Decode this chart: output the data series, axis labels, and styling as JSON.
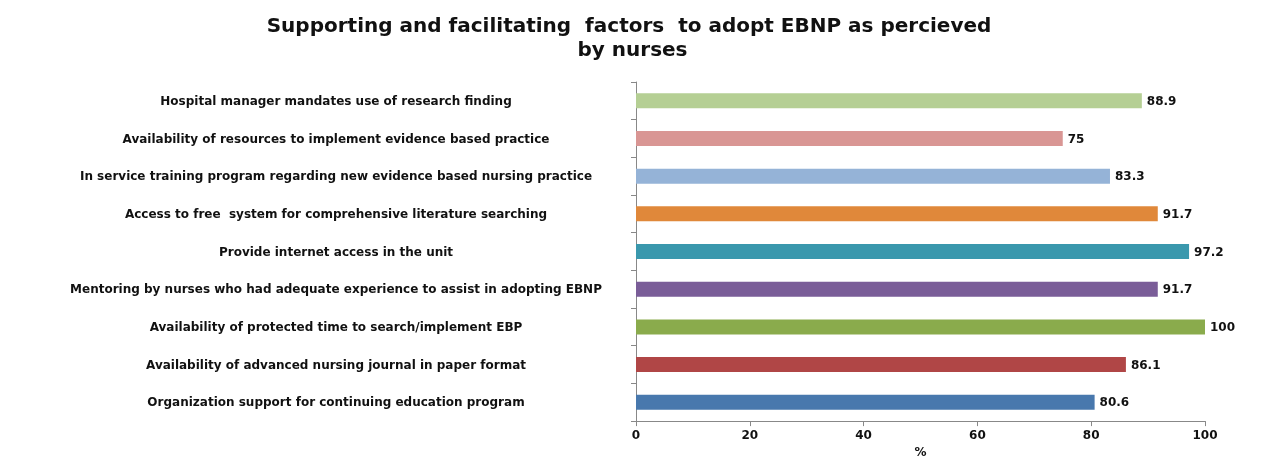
{
  "chart_data": {
    "type": "bar",
    "orientation": "horizontal",
    "title": "Supporting and facilitating  factors  to adopt EBNP as percieved by nurses",
    "xlabel": "%",
    "categories": [
      "Hospital manager mandates use of research finding",
      "Availability of resources to implement evidence based practice",
      "In service training program regarding new evidence based nursing practice",
      "Access to free  system for comprehensive literature searching",
      "Provide internet access in the unit",
      "Mentoring by nurses who had adequate experience to assist in adopting EBNP",
      "Availability of protected time to search/implement EBP",
      "Availability of advanced nursing journal in paper format",
      "Organization support for continuing education program"
    ],
    "values": [
      88.9,
      75,
      83.3,
      91.7,
      97.2,
      91.7,
      100,
      86.1,
      80.6
    ],
    "colors": [
      "#b5cf94",
      "#d99694",
      "#95b3d7",
      "#e0883a",
      "#3a98ad",
      "#7a5d98",
      "#8aab4c",
      "#b04646",
      "#4878ad"
    ],
    "xlim": [
      0,
      100
    ],
    "xticks": [
      0,
      20,
      40,
      60,
      80,
      100
    ],
    "data_labels": true,
    "grid": false
  }
}
